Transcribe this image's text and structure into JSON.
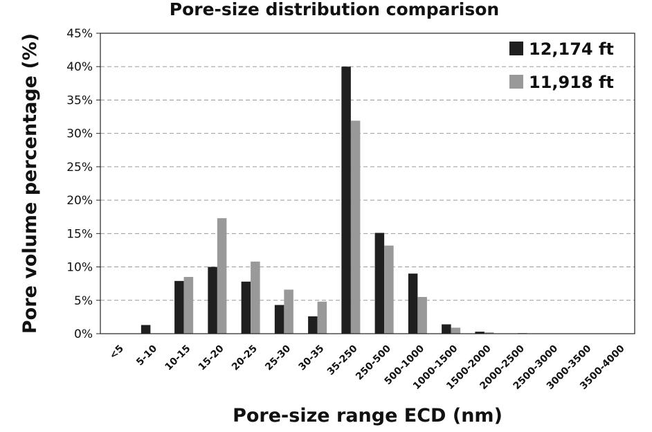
{
  "chart_data": {
    "type": "bar",
    "title": "Pore-size distribution comparison",
    "xlabel": "Pore-size range ECD (nm)",
    "ylabel": "Pore volume percentage (%)",
    "ylim": [
      0,
      45
    ],
    "y_ticks": [
      "0%",
      "5%",
      "10%",
      "15%",
      "20%",
      "25%",
      "30%",
      "35%",
      "40%",
      "45%"
    ],
    "grid": "horizontal dashed",
    "legend_position": "top-right",
    "categories": [
      "<5",
      "5-10",
      "10-15",
      "15-20",
      "20-25",
      "25-30",
      "30-35",
      "35-250",
      "250-500",
      "500-1000",
      "1000-1500",
      "1500-2000",
      "2000-2500",
      "2500-3000",
      "3000-3500",
      "3500-4000"
    ],
    "series": [
      {
        "name": "12,174 ft",
        "color": "#1f1f1f",
        "values": [
          0,
          1.3,
          7.9,
          10.0,
          7.8,
          4.3,
          2.6,
          40.0,
          15.1,
          9.0,
          1.4,
          0.3,
          0,
          0,
          0,
          0
        ]
      },
      {
        "name": "11,918 ft",
        "color": "#999999",
        "values": [
          0,
          0,
          8.5,
          17.3,
          10.8,
          6.6,
          4.8,
          31.9,
          13.2,
          5.5,
          0.9,
          0.2,
          0.1,
          0,
          0,
          0
        ]
      }
    ]
  }
}
